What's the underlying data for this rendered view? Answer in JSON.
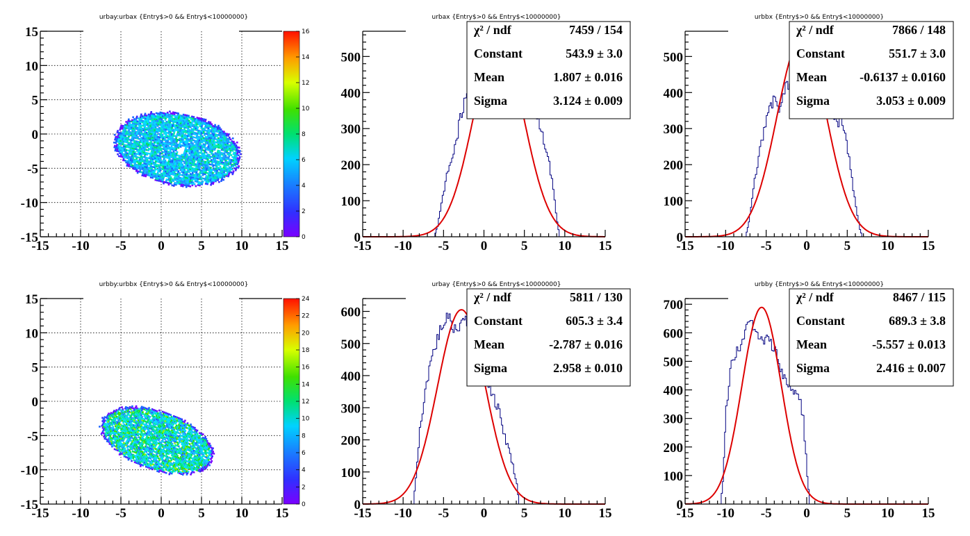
{
  "chart_data": [
    {
      "type": "heatmap",
      "title": "urbay:urbax {Entry$>0 && Entry$<10000000}",
      "xlim": [
        -15,
        15
      ],
      "ylim": [
        -15,
        15
      ],
      "x_ticks": [
        -15,
        -10,
        -5,
        0,
        5,
        10,
        15
      ],
      "y_ticks": [
        -15,
        -10,
        -5,
        0,
        5,
        10,
        15
      ],
      "grid": true,
      "colorbar": {
        "min": 0,
        "max": 16,
        "ticks": [
          0,
          2,
          4,
          6,
          8,
          10,
          12,
          14,
          16
        ]
      },
      "region": {
        "center": [
          1.9,
          -2.1
        ],
        "semi_axes": [
          8.0,
          5.2
        ],
        "rotation_deg": -15,
        "hole": [
          2.3,
          -2.3
        ]
      }
    },
    {
      "type": "line",
      "title": "urbax {Entry$>0 && Entry$<10000000}",
      "xlim": [
        -15,
        15
      ],
      "ylim": [
        0,
        570
      ],
      "x_ticks": [
        -15,
        -10,
        -5,
        0,
        5,
        10,
        15
      ],
      "y_ticks": [
        0,
        100,
        200,
        300,
        400,
        500
      ],
      "series": [
        {
          "kind": "histogram",
          "color": "#000080",
          "points": [
            [
              -15,
              0
            ],
            [
              -6.2,
              0
            ],
            [
              -5.8,
              30
            ],
            [
              -5.5,
              70
            ],
            [
              -5,
              130
            ],
            [
              -4.5,
              190
            ],
            [
              -4,
              215
            ],
            [
              -3.5,
              260
            ],
            [
              -3,
              330
            ],
            [
              -2.5,
              380
            ],
            [
              -2,
              420
            ],
            [
              -1.5,
              460
            ],
            [
              -1,
              500
            ],
            [
              -0.5,
              530
            ],
            [
              0,
              550
            ],
            [
              1,
              545
            ],
            [
              2,
              540
            ],
            [
              3,
              530
            ],
            [
              4,
              500
            ],
            [
              4.5,
              460
            ],
            [
              5,
              420
            ],
            [
              5.5,
              370
            ],
            [
              6,
              350
            ],
            [
              6.5,
              330
            ],
            [
              7,
              300
            ],
            [
              7.5,
              250
            ],
            [
              8,
              200
            ],
            [
              8.5,
              130
            ],
            [
              9,
              40
            ],
            [
              9.3,
              0
            ],
            [
              15,
              0
            ]
          ]
        },
        {
          "kind": "gaussian-fit",
          "color": "#dd0000",
          "constant": 543.9,
          "mean": 1.807,
          "sigma": 3.124
        }
      ],
      "stats": [
        {
          "key": "χ² / ndf",
          "value": "7459 / 154"
        },
        {
          "key": "Constant",
          "value": "543.9 ± 3.0"
        },
        {
          "key": "Mean",
          "value": "1.807 ± 0.016"
        },
        {
          "key": "Sigma",
          "value": "3.124 ± 0.009"
        }
      ]
    },
    {
      "type": "line",
      "title": "urbbx {Entry$>0 && Entry$<10000000}",
      "xlim": [
        -15,
        15
      ],
      "ylim": [
        0,
        570
      ],
      "x_ticks": [
        -15,
        -10,
        -5,
        0,
        5,
        10,
        15
      ],
      "y_ticks": [
        0,
        100,
        200,
        300,
        400,
        500
      ],
      "series": [
        {
          "kind": "histogram",
          "color": "#000080",
          "points": [
            [
              -15,
              0
            ],
            [
              -7.6,
              0
            ],
            [
              -7.2,
              40
            ],
            [
              -6.8,
              110
            ],
            [
              -6.5,
              160
            ],
            [
              -6,
              220
            ],
            [
              -5.5,
              280
            ],
            [
              -5,
              340
            ],
            [
              -4.5,
              380
            ],
            [
              -4,
              370
            ],
            [
              -3.5,
              360
            ],
            [
              -3,
              390
            ],
            [
              -2.5,
              420
            ],
            [
              -2,
              440
            ],
            [
              -1.5,
              460
            ],
            [
              -1,
              470
            ],
            [
              0,
              470
            ],
            [
              1,
              460
            ],
            [
              2,
              440
            ],
            [
              2.5,
              400
            ],
            [
              3,
              350
            ],
            [
              3.5,
              330
            ],
            [
              4,
              320
            ],
            [
              4.5,
              300
            ],
            [
              5,
              240
            ],
            [
              5.5,
              160
            ],
            [
              6,
              80
            ],
            [
              6.5,
              20
            ],
            [
              6.8,
              0
            ],
            [
              15,
              0
            ]
          ]
        },
        {
          "kind": "gaussian-fit",
          "color": "#dd0000",
          "constant": 551.7,
          "mean": -0.6137,
          "sigma": 3.053
        }
      ],
      "stats": [
        {
          "key": "χ² / ndf",
          "value": "7866 / 148"
        },
        {
          "key": "Constant",
          "value": "551.7 ± 3.0"
        },
        {
          "key": "Mean",
          "value": "-0.6137 ± 0.0160"
        },
        {
          "key": "Sigma",
          "value": "3.053 ± 0.009"
        }
      ]
    },
    {
      "type": "heatmap",
      "title": "urbby:urbbx {Entry$>0 && Entry$<10000000}",
      "xlim": [
        -15,
        15
      ],
      "ylim": [
        -15,
        15
      ],
      "x_ticks": [
        -15,
        -10,
        -5,
        0,
        5,
        10,
        15
      ],
      "y_ticks": [
        -15,
        -10,
        -5,
        0,
        5,
        10,
        15
      ],
      "grid": true,
      "colorbar": {
        "min": 0,
        "max": 24,
        "ticks": [
          0,
          2,
          4,
          6,
          8,
          10,
          12,
          14,
          16,
          18,
          20,
          22,
          24
        ]
      },
      "region": {
        "center": [
          -0.6,
          -5.6
        ],
        "semi_axes": [
          7.5,
          4.2
        ],
        "rotation_deg": -25,
        "hole": null
      }
    },
    {
      "type": "line",
      "title": "urbay {Entry$>0 && Entry$<10000000}",
      "xlim": [
        -15,
        15
      ],
      "ylim": [
        0,
        640
      ],
      "x_ticks": [
        -15,
        -10,
        -5,
        0,
        5,
        10,
        15
      ],
      "y_ticks": [
        0,
        100,
        200,
        300,
        400,
        500,
        600
      ],
      "series": [
        {
          "kind": "histogram",
          "color": "#000080",
          "points": [
            [
              -15,
              0
            ],
            [
              -8.8,
              0
            ],
            [
              -8.5,
              80
            ],
            [
              -8,
              230
            ],
            [
              -7.5,
              330
            ],
            [
              -7,
              400
            ],
            [
              -6.5,
              460
            ],
            [
              -6,
              500
            ],
            [
              -5.5,
              540
            ],
            [
              -5,
              570
            ],
            [
              -4.5,
              580
            ],
            [
              -4,
              560
            ],
            [
              -3.5,
              540
            ],
            [
              -3,
              560
            ],
            [
              -2.5,
              590
            ],
            [
              -2,
              560
            ],
            [
              -1.5,
              520
            ],
            [
              -1,
              480
            ],
            [
              -0.5,
              450
            ],
            [
              0,
              420
            ],
            [
              0.5,
              380
            ],
            [
              1,
              340
            ],
            [
              1.5,
              310
            ],
            [
              2,
              270
            ],
            [
              2.5,
              210
            ],
            [
              3,
              170
            ],
            [
              3.5,
              120
            ],
            [
              4,
              60
            ],
            [
              4.3,
              0
            ],
            [
              15,
              0
            ]
          ]
        },
        {
          "kind": "gaussian-fit",
          "color": "#dd0000",
          "constant": 605.3,
          "mean": -2.787,
          "sigma": 2.958
        }
      ],
      "stats": [
        {
          "key": "χ² / ndf",
          "value": "5811 / 130"
        },
        {
          "key": "Constant",
          "value": "605.3 ± 3.4"
        },
        {
          "key": "Mean",
          "value": "-2.787 ± 0.016"
        },
        {
          "key": "Sigma",
          "value": "2.958 ± 0.010"
        }
      ]
    },
    {
      "type": "line",
      "title": "urbby {Entry$>0 && Entry$<10000000}",
      "xlim": [
        -15,
        15
      ],
      "ylim": [
        0,
        720
      ],
      "x_ticks": [
        -15,
        -10,
        -5,
        0,
        5,
        10,
        15
      ],
      "y_ticks": [
        0,
        100,
        200,
        300,
        400,
        500,
        600,
        700
      ],
      "series": [
        {
          "kind": "histogram",
          "color": "#000080",
          "points": [
            [
              -15,
              0
            ],
            [
              -10.7,
              0
            ],
            [
              -10.4,
              80
            ],
            [
              -10,
              330
            ],
            [
              -9.5,
              480
            ],
            [
              -9,
              520
            ],
            [
              -8.5,
              540
            ],
            [
              -8,
              560
            ],
            [
              -7.5,
              620
            ],
            [
              -7,
              660
            ],
            [
              -6.5,
              600
            ],
            [
              -6,
              580
            ],
            [
              -5.5,
              570
            ],
            [
              -5,
              580
            ],
            [
              -4.5,
              560
            ],
            [
              -4,
              540
            ],
            [
              -3.5,
              500
            ],
            [
              -3,
              450
            ],
            [
              -2.5,
              420
            ],
            [
              -2,
              410
            ],
            [
              -1.5,
              390
            ],
            [
              -1,
              380
            ],
            [
              -0.5,
              300
            ],
            [
              0,
              100
            ],
            [
              0.3,
              0
            ],
            [
              15,
              0
            ]
          ]
        },
        {
          "kind": "gaussian-fit",
          "color": "#dd0000",
          "constant": 689.3,
          "mean": -5.557,
          "sigma": 2.416
        }
      ],
      "stats": [
        {
          "key": "χ² / ndf",
          "value": "8467 / 115"
        },
        {
          "key": "Constant",
          "value": "689.3 ± 3.8"
        },
        {
          "key": "Mean",
          "value": "-5.557 ± 0.013"
        },
        {
          "key": "Sigma",
          "value": "2.416 ± 0.007"
        }
      ]
    }
  ]
}
